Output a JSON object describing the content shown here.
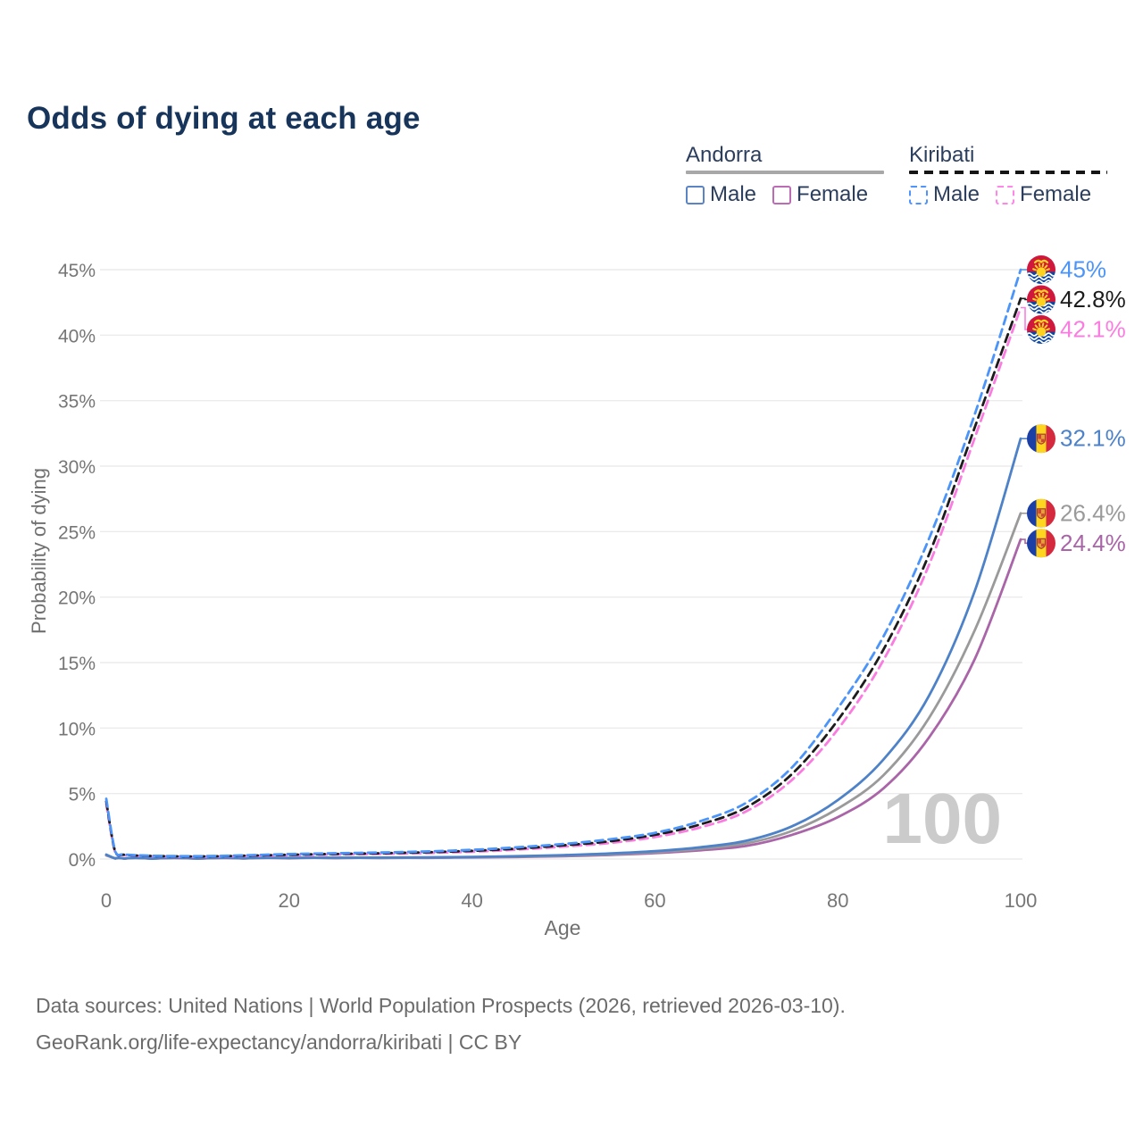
{
  "chart": {
    "title": "Odds of dying at each age",
    "watermark": "100",
    "x_axis": {
      "label": "Age"
    },
    "y_axis": {
      "label": "Probability of dying"
    }
  },
  "legend": {
    "groups": [
      {
        "country": "Andorra",
        "underline_color": "#a8a8a8",
        "underline_dashed": false,
        "items": [
          {
            "label": "Male",
            "color": "#5b84c4",
            "dashed": false
          },
          {
            "label": "Female",
            "color": "#bb6cb4",
            "dashed": false
          }
        ]
      },
      {
        "country": "Kiribati",
        "underline_color": "#151515",
        "underline_dashed": true,
        "items": [
          {
            "label": "Male",
            "color": "#4d94ff",
            "dashed": true
          },
          {
            "label": "Female",
            "color": "#ff85e8",
            "dashed": true
          }
        ]
      }
    ]
  },
  "chart_data": {
    "type": "line",
    "title": "Odds of dying at each age",
    "xlabel": "Age",
    "ylabel": "Probability of dying",
    "xlim": [
      0,
      100
    ],
    "ylim": [
      0,
      45
    ],
    "x_ticks": [
      0,
      20,
      40,
      60,
      80,
      100
    ],
    "y_ticks_percent": [
      0,
      5,
      10,
      15,
      20,
      25,
      30,
      35,
      40,
      45
    ],
    "grid": "horizontal",
    "legend_position": "top-right",
    "x": [
      0,
      1,
      2,
      5,
      10,
      15,
      20,
      25,
      30,
      35,
      40,
      45,
      50,
      55,
      60,
      65,
      70,
      75,
      80,
      85,
      90,
      95,
      100
    ],
    "series": [
      {
        "name": "Andorra Female",
        "country": "andorra",
        "sex": "female",
        "color": "#a965a8",
        "dash": false,
        "end_label": "24.4%",
        "values": [
          0.28,
          0.04,
          0.03,
          0.025,
          0.03,
          0.045,
          0.055,
          0.065,
          0.075,
          0.09,
          0.12,
          0.16,
          0.22,
          0.31,
          0.45,
          0.67,
          1.0,
          1.85,
          3.2,
          5.4,
          9.3,
          15.3,
          24.4
        ]
      },
      {
        "name": "Andorra Both sexes",
        "country": "andorra",
        "sex": "both",
        "color": "#9a9a9a",
        "dash": false,
        "end_label": "26.4%",
        "values": [
          0.31,
          0.045,
          0.035,
          0.028,
          0.035,
          0.05,
          0.07,
          0.08,
          0.09,
          0.11,
          0.14,
          0.19,
          0.26,
          0.36,
          0.52,
          0.78,
          1.2,
          2.15,
          3.85,
          6.4,
          10.8,
          17.5,
          26.4
        ]
      },
      {
        "name": "Andorra Male",
        "country": "andorra",
        "sex": "male",
        "color": "#4d82c8",
        "dash": false,
        "end_label": "32.1%",
        "values": [
          0.34,
          0.05,
          0.04,
          0.03,
          0.04,
          0.06,
          0.09,
          0.1,
          0.11,
          0.13,
          0.16,
          0.22,
          0.3,
          0.42,
          0.6,
          0.9,
          1.4,
          2.5,
          4.5,
          7.6,
          12.5,
          20.5,
          32.1
        ]
      },
      {
        "name": "Kiribati Female",
        "country": "kiribati",
        "sex": "female",
        "color": "#fb7ce0",
        "dash": true,
        "end_label": "42.1%",
        "values": [
          4.2,
          0.48,
          0.3,
          0.21,
          0.18,
          0.22,
          0.29,
          0.34,
          0.39,
          0.46,
          0.56,
          0.72,
          0.95,
          1.22,
          1.68,
          2.42,
          3.65,
          6.05,
          9.9,
          15.2,
          22.5,
          32.2,
          42.1
        ]
      },
      {
        "name": "Kiribati Both sexes",
        "country": "kiribati",
        "sex": "both",
        "color": "#1c1c1c",
        "dash": true,
        "end_label": "42.8%",
        "values": [
          4.4,
          0.52,
          0.33,
          0.23,
          0.2,
          0.25,
          0.33,
          0.39,
          0.44,
          0.52,
          0.63,
          0.8,
          1.05,
          1.35,
          1.85,
          2.65,
          3.95,
          6.5,
          10.6,
          16.0,
          23.3,
          33.0,
          42.8
        ]
      },
      {
        "name": "Kiribati Male",
        "country": "kiribati",
        "sex": "male",
        "color": "#4a94fa",
        "dash": true,
        "end_label": "45%",
        "values": [
          4.6,
          0.55,
          0.35,
          0.25,
          0.22,
          0.28,
          0.38,
          0.44,
          0.5,
          0.58,
          0.7,
          0.9,
          1.15,
          1.5,
          2.0,
          2.9,
          4.3,
          7.0,
          11.5,
          17.0,
          24.5,
          34.0,
          45.0
        ]
      }
    ]
  },
  "footer": {
    "line1": "Data sources: United Nations | World Population Prospects (2026, retrieved 2026-03-10).",
    "line2": "GeoRank.org/life-expectancy/andorra/kiribati | CC BY"
  }
}
